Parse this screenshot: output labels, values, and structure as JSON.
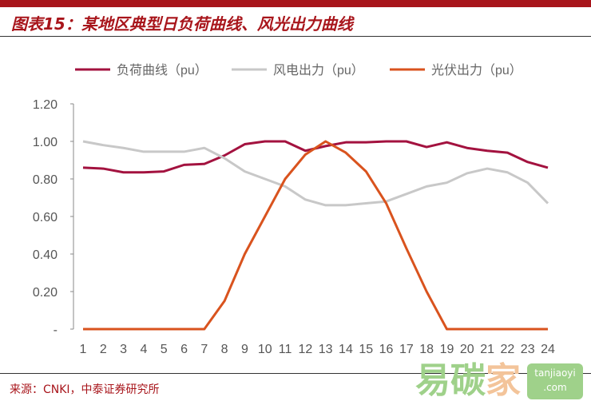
{
  "header": {
    "title": "图表15：某地区典型日负荷曲线、风光出力曲线"
  },
  "footer": {
    "source": "来源：CNKI，中泰证券研究所"
  },
  "watermark": {
    "chars": [
      "易",
      "碳",
      "家"
    ],
    "site": "tanjiaoyi",
    "domain": ".com"
  },
  "chart_data": {
    "type": "line",
    "title": "某地区典型日负荷曲线、风光出力曲线",
    "xlabel": "",
    "ylabel": "",
    "x": [
      1,
      2,
      3,
      4,
      5,
      6,
      7,
      8,
      9,
      10,
      11,
      12,
      13,
      14,
      15,
      16,
      17,
      18,
      19,
      20,
      21,
      22,
      23,
      24
    ],
    "ylim": [
      0,
      1.2
    ],
    "y_ticks": [
      "-",
      "0.20",
      "0.40",
      "0.60",
      "0.80",
      "1.00",
      "1.20"
    ],
    "legend_position": "top",
    "grid": false,
    "series": [
      {
        "name": "负荷曲线（pu）",
        "color": "#a3123f",
        "values": [
          0.86,
          0.855,
          0.835,
          0.835,
          0.84,
          0.875,
          0.88,
          0.925,
          0.985,
          1.0,
          1.0,
          0.95,
          0.975,
          0.995,
          0.995,
          1.0,
          1.0,
          0.97,
          0.995,
          0.965,
          0.95,
          0.94,
          0.89,
          0.86
        ]
      },
      {
        "name": "风电出力（pu）",
        "color": "#c8c8c8",
        "values": [
          1.0,
          0.98,
          0.965,
          0.945,
          0.945,
          0.945,
          0.965,
          0.91,
          0.84,
          0.8,
          0.76,
          0.69,
          0.66,
          0.66,
          0.67,
          0.68,
          0.72,
          0.76,
          0.78,
          0.83,
          0.855,
          0.835,
          0.78,
          0.67
        ]
      },
      {
        "name": "光伏出力（pu）",
        "color": "#d9531e",
        "values": [
          0,
          0,
          0,
          0,
          0,
          0,
          0,
          0.15,
          0.4,
          0.6,
          0.8,
          0.93,
          1.0,
          0.94,
          0.84,
          0.67,
          0.43,
          0.2,
          0,
          0,
          0,
          0,
          0,
          0
        ]
      }
    ]
  }
}
